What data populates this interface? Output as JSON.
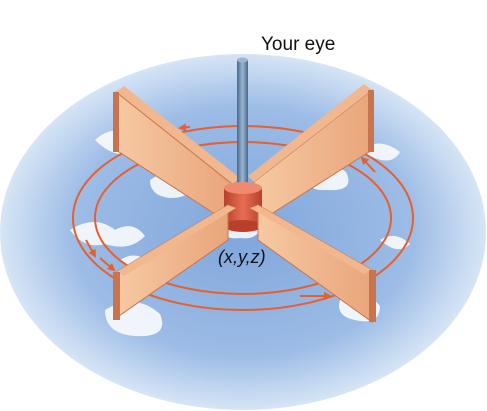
{
  "labels": {
    "eye": "Your eye",
    "point": "(x,y,z)"
  },
  "colors": {
    "water_outer": "#cfe0f4",
    "water_inner": "#7fa6db",
    "foam": "#ffffff",
    "vane_face": "#f2b489",
    "vane_edge": "#c8744f",
    "hub": "#d85a3f",
    "shaft": "#6c8db0",
    "circulation_arrow": "#e5602f"
  },
  "icons": [
    "shaft",
    "hub",
    "vane",
    "circulation-arrow",
    "water-foam"
  ]
}
